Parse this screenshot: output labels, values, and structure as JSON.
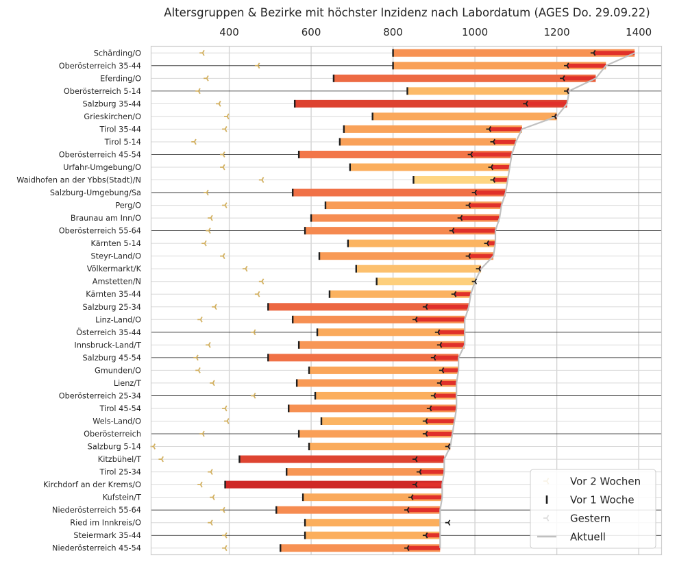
{
  "chart_data": {
    "type": "bar",
    "title": "Altersgruppen & Bezirke mit höchster Inzidenz nach Labordatum (AGES Do. 29.09.22)",
    "xlim": [
      210,
      1455
    ],
    "x_ticks": [
      400,
      600,
      800,
      1000,
      1200,
      1400
    ],
    "x_axis_position": "top",
    "grid": true,
    "legend_position": "bottom-right",
    "legend": [
      "Vor 2 Wochen",
      "Vor 1 Woche",
      "Gestern",
      "Aktuell"
    ],
    "colors": {
      "vor2": "#d2b060",
      "vor1": "#1e1e1e",
      "gestern": "#1e1e1e",
      "aktuell": "#c0c0c0",
      "increase_overlay": "#e0302a"
    },
    "categories": [
      "Schärding/O",
      "Oberösterreich 35-44",
      "Eferding/O",
      "Oberösterreich 5-14",
      "Salzburg 35-44",
      "Grieskirchen/O",
      "Tirol 35-44",
      "Tirol 5-14",
      "Oberösterreich 45-54",
      "Urfahr-Umgebung/O",
      "Waidhofen an der Ybbs(Stadt)/N",
      "Salzburg-Umgebung/Sa",
      "Perg/O",
      "Braunau am Inn/O",
      "Oberösterreich 55-64",
      "Kärnten 5-14",
      "Steyr-Land/O",
      "Völkermarkt/K",
      "Amstetten/N",
      "Kärnten 35-44",
      "Salzburg 25-34",
      "Linz-Land/O",
      "Österreich 35-44",
      "Innsbruck-Land/T",
      "Salzburg 45-54",
      "Gmunden/O",
      "Lienz/T",
      "Oberösterreich 25-34",
      "Tirol 45-54",
      "Wels-Land/O",
      "Oberösterreich",
      "Salzburg 5-14",
      "Kitzbühel/T",
      "Tirol 25-34",
      "Kirchdorf an der Krems/O",
      "Kufstein/T",
      "Niederösterreich 55-64",
      "Ried im Innkreis/O",
      "Steiermark 35-44",
      "Niederösterreich 45-54"
    ],
    "series": [
      {
        "name": "Vor 2 Wochen",
        "values": [
          335,
          470,
          345,
          325,
          375,
          395,
          390,
          315,
          385,
          385,
          480,
          345,
          390,
          355,
          350,
          340,
          385,
          440,
          480,
          470,
          365,
          330,
          460,
          350,
          320,
          325,
          360,
          460,
          390,
          395,
          335,
          215,
          235,
          355,
          330,
          360,
          385,
          355,
          390,
          390
        ]
      },
      {
        "name": "Vor 1 Woche",
        "values": [
          800,
          800,
          655,
          835,
          560,
          750,
          680,
          670,
          570,
          695,
          850,
          555,
          635,
          600,
          585,
          690,
          620,
          710,
          760,
          645,
          495,
          555,
          615,
          570,
          495,
          595,
          565,
          610,
          545,
          625,
          570,
          595,
          425,
          540,
          390,
          580,
          515,
          585,
          585,
          525
        ]
      },
      {
        "name": "Gestern",
        "values": [
          1290,
          1225,
          1215,
          1225,
          1125,
          1195,
          1035,
          1045,
          990,
          1040,
          1045,
          1000,
          985,
          965,
          945,
          1030,
          985,
          1010,
          1000,
          950,
          880,
          855,
          910,
          915,
          900,
          920,
          915,
          900,
          890,
          880,
          880,
          935,
          855,
          865,
          855,
          845,
          835,
          935,
          880,
          835
        ]
      },
      {
        "name": "Aktuell",
        "values": [
          1390,
          1320,
          1295,
          1230,
          1225,
          1200,
          1115,
          1100,
          1090,
          1085,
          1080,
          1075,
          1065,
          1060,
          1050,
          1050,
          1045,
          1015,
          1000,
          990,
          985,
          975,
          975,
          975,
          960,
          960,
          955,
          955,
          955,
          950,
          945,
          940,
          925,
          925,
          920,
          920,
          915,
          915,
          915,
          915
        ]
      }
    ]
  }
}
